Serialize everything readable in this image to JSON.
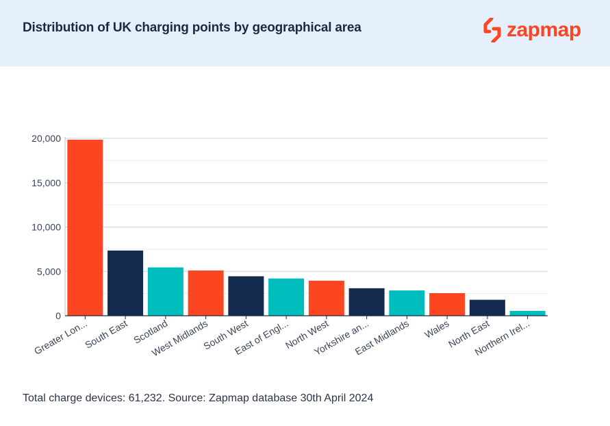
{
  "header": {
    "title": "Distribution of UK charging points by geographical area",
    "brand_name": "zapmap",
    "brand_icon": "lightning-bolt-icon"
  },
  "colors": {
    "header_bg": "#e6f0fc",
    "orange": "#fc4521",
    "navy": "#142a4e",
    "teal": "#00bdbd",
    "gridline": "#cfd4da",
    "axis": "#1d2940"
  },
  "chart_data": {
    "type": "bar",
    "categories": [
      "Greater Lon...",
      "South East",
      "Scotland",
      "West Midlands",
      "South West",
      "East of Engl...",
      "North West",
      "Yorkshire an...",
      "East Midlands",
      "Wales",
      "North East",
      "Northern Irel..."
    ],
    "values": [
      19850,
      7350,
      5450,
      5100,
      4450,
      4200,
      3950,
      3100,
      2850,
      2550,
      1800,
      550
    ],
    "bar_colors": [
      "#fc4521",
      "#142a4e",
      "#00bdbd",
      "#fc4521",
      "#142a4e",
      "#00bdbd",
      "#fc4521",
      "#142a4e",
      "#00bdbd",
      "#fc4521",
      "#142a4e",
      "#00bdbd"
    ],
    "y_ticks": [
      "0",
      "5,000",
      "10,000",
      "15,000",
      "20,000"
    ],
    "ylim": [
      0,
      20000
    ],
    "title": "Distribution of UK charging points by geographical area",
    "xlabel": "",
    "ylabel": "",
    "grid": true,
    "legend": "none"
  },
  "footnote": "Total charge devices: 61,232. Source: Zapmap database 30th April 2024"
}
